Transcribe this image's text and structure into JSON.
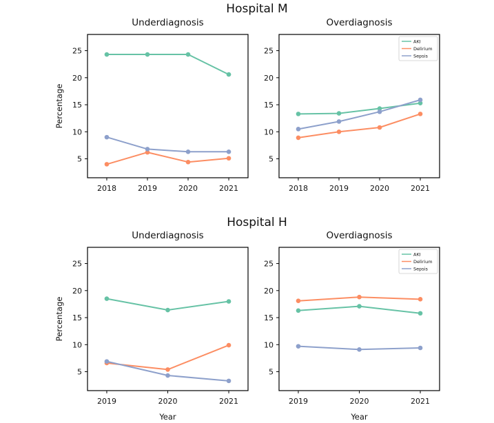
{
  "colors": {
    "AKI": "#66c2a5",
    "Delirium": "#fc8d62",
    "Sepsis": "#8da0cb"
  },
  "y_axis_label": "Percentage",
  "x_axis_label": "Year",
  "hospitals": [
    {
      "title": "Hospital M"
    },
    {
      "title": "Hospital H"
    }
  ],
  "chart_data": [
    {
      "type": "line",
      "hospital": "Hospital M",
      "title": "Underdiagnosis",
      "xlabel": "",
      "ylabel": "Percentage",
      "ylim": [
        1.5,
        28
      ],
      "yticks": [
        5,
        10,
        15,
        20,
        25
      ],
      "categories": [
        "2018",
        "2019",
        "2020",
        "2021"
      ],
      "series": [
        {
          "name": "AKI",
          "values": [
            24.3,
            24.3,
            24.3,
            20.6
          ]
        },
        {
          "name": "Delirium",
          "values": [
            4.0,
            6.2,
            4.4,
            5.1
          ]
        },
        {
          "name": "Sepsis",
          "values": [
            9.0,
            6.8,
            6.3,
            6.3
          ]
        }
      ],
      "legend": null
    },
    {
      "type": "line",
      "hospital": "Hospital M",
      "title": "Overdiagnosis",
      "xlabel": "",
      "ylabel": "",
      "ylim": [
        1.5,
        28
      ],
      "yticks": [
        5,
        10,
        15,
        20,
        25
      ],
      "categories": [
        "2018",
        "2019",
        "2020",
        "2021"
      ],
      "series": [
        {
          "name": "AKI",
          "values": [
            13.3,
            13.4,
            14.3,
            15.3
          ]
        },
        {
          "name": "Delirium",
          "values": [
            8.9,
            10.0,
            10.8,
            13.3
          ]
        },
        {
          "name": "Sepsis",
          "values": [
            10.5,
            11.9,
            13.7,
            15.9
          ]
        }
      ],
      "legend": "top-right"
    },
    {
      "type": "line",
      "hospital": "Hospital H",
      "title": "Underdiagnosis",
      "xlabel": "Year",
      "ylabel": "Percentage",
      "ylim": [
        1.5,
        28
      ],
      "yticks": [
        5,
        10,
        15,
        20,
        25
      ],
      "categories": [
        "2019",
        "2020",
        "2021"
      ],
      "series": [
        {
          "name": "AKI",
          "values": [
            18.5,
            16.4,
            18.0
          ]
        },
        {
          "name": "Delirium",
          "values": [
            6.6,
            5.4,
            9.9
          ]
        },
        {
          "name": "Sepsis",
          "values": [
            6.9,
            4.3,
            3.3
          ]
        }
      ],
      "legend": null
    },
    {
      "type": "line",
      "hospital": "Hospital H",
      "title": "Overdiagnosis",
      "xlabel": "Year",
      "ylabel": "",
      "ylim": [
        1.5,
        28
      ],
      "yticks": [
        5,
        10,
        15,
        20,
        25
      ],
      "categories": [
        "2019",
        "2020",
        "2021"
      ],
      "series": [
        {
          "name": "AKI",
          "values": [
            16.3,
            17.1,
            15.8
          ]
        },
        {
          "name": "Delirium",
          "values": [
            18.1,
            18.8,
            18.4
          ]
        },
        {
          "name": "Sepsis",
          "values": [
            9.7,
            9.1,
            9.4
          ]
        }
      ],
      "legend": "top-right"
    }
  ]
}
